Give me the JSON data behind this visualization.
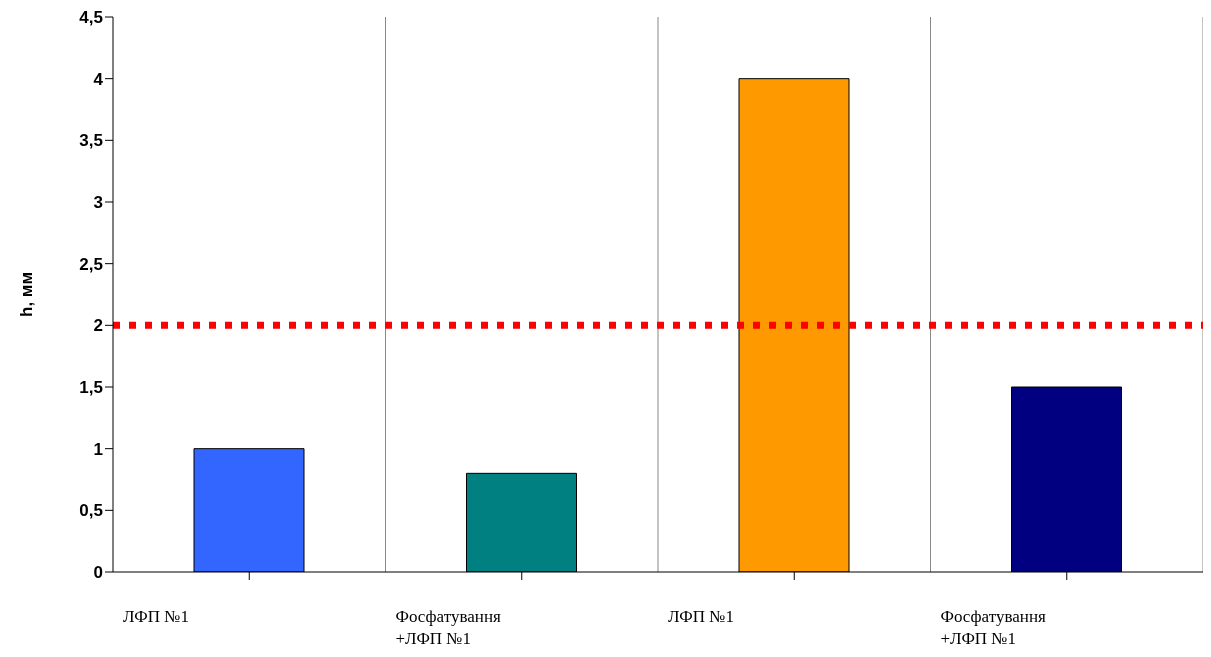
{
  "chart_data": {
    "type": "bar",
    "ylabel": "h, мм",
    "categories": [
      "ЛФП №1",
      "Фосфатування +ЛФП №1",
      "ЛФП №1",
      "Фосфатування +ЛФП №1"
    ],
    "values": [
      1,
      0.8,
      4,
      1.5
    ],
    "colors": [
      "#3366ff",
      "#008080",
      "#ff9900",
      "#000080"
    ],
    "ylim": [
      0,
      4.5
    ],
    "yticks": [
      0,
      {
        "value": 0.5,
        "label": "0,5"
      },
      1,
      {
        "value": 1.5,
        "label": "1,5"
      },
      2,
      {
        "value": 2.5,
        "label": "2,5"
      },
      3,
      {
        "value": 3.5,
        "label": "3,5"
      },
      4,
      {
        "value": 4.5,
        "label": "4,5"
      }
    ],
    "ref_lines": [
      {
        "axis": "y",
        "value": 2,
        "color": "#ff0000",
        "line_style": "dotted"
      }
    ],
    "grid": "x"
  }
}
